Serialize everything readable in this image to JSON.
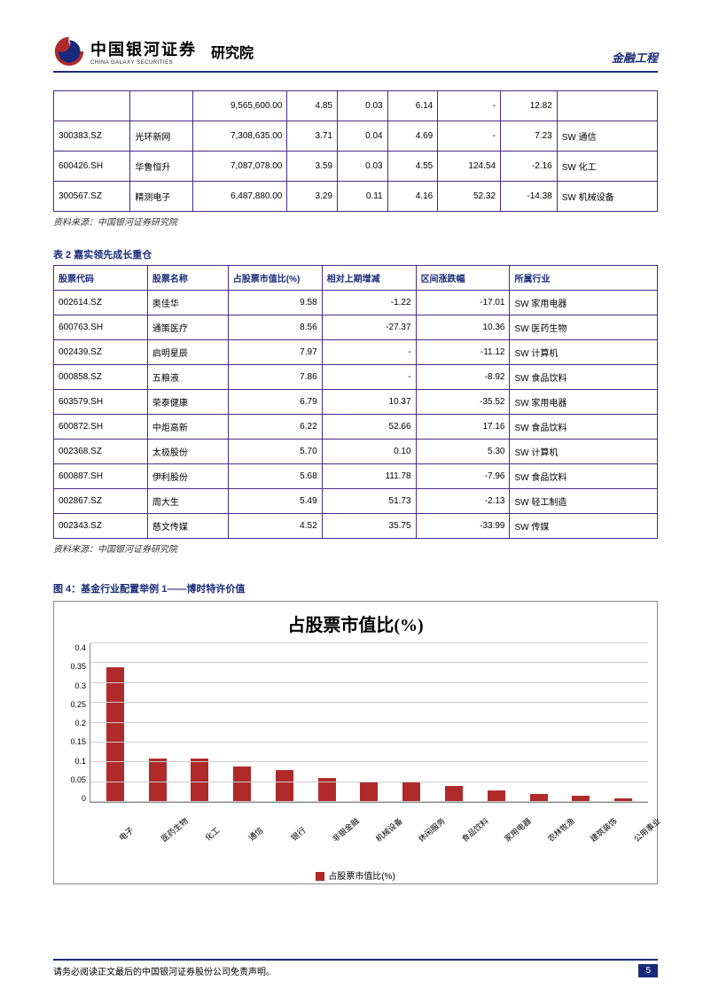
{
  "header": {
    "company_cn": "中国银河证券",
    "company_en": "CHINA GALAXY SECURITIES",
    "suffix": "研究院",
    "right_label": "金融工程",
    "logo": {
      "outer_color": "#b02a2a",
      "inner_color": "#1a2a7a"
    }
  },
  "table1": {
    "rows": [
      [
        "",
        "",
        "9,565,600.00",
        "4.85",
        "0.03",
        "6.14",
        "-",
        "12.82",
        ""
      ],
      [
        "300383.SZ",
        "光环新网",
        "7,308,635.00",
        "3.71",
        "0.04",
        "4.69",
        "-",
        "7.23",
        "SW 通信"
      ],
      [
        "600426.SH",
        "华鲁恒升",
        "7,087,078.00",
        "3.59",
        "0.03",
        "4.55",
        "124.54",
        "-2.16",
        "SW 化工"
      ],
      [
        "300567.SZ",
        "精测电子",
        "6,487,880.00",
        "3.29",
        "0.11",
        "4.16",
        "52.32",
        "-14.38",
        "SW 机械设备"
      ]
    ],
    "col_align": [
      "left",
      "left",
      "right",
      "right",
      "right",
      "right",
      "right",
      "right",
      "left"
    ]
  },
  "source_note": "资料来源：中国银河证券研究院",
  "table2": {
    "title": "表  2 嘉实领先成长重仓",
    "headers": [
      "股票代码",
      "股票名称",
      "占股票市值比(%)",
      "相对上期增减",
      "区间涨跌幅",
      "所属行业"
    ],
    "rows": [
      [
        "002614.SZ",
        "奥佳华",
        "9.58",
        "-1.22",
        "-17.01",
        "SW 家用电器"
      ],
      [
        "600763.SH",
        "通策医疗",
        "8.56",
        "-27.37",
        "10.36",
        "SW 医药生物"
      ],
      [
        "002439.SZ",
        "启明星辰",
        "7.97",
        "-",
        "-11.12",
        "SW 计算机"
      ],
      [
        "000858.SZ",
        "五粮液",
        "7.86",
        "-",
        "-8.92",
        "SW 食品饮料"
      ],
      [
        "603579.SH",
        "荣泰健康",
        "6.79",
        "10.37",
        "-35.52",
        "SW 家用电器"
      ],
      [
        "600872.SH",
        "中炬高新",
        "6.22",
        "52.66",
        "17.16",
        "SW 食品饮料"
      ],
      [
        "002368.SZ",
        "太极股份",
        "5.70",
        "0.10",
        "5.30",
        "SW 计算机"
      ],
      [
        "600887.SH",
        "伊利股份",
        "5.68",
        "111.78",
        "-7.96",
        "SW 食品饮料"
      ],
      [
        "002867.SZ",
        "周大生",
        "5.49",
        "51.73",
        "-2.13",
        "SW 轻工制造"
      ],
      [
        "002343.SZ",
        "慈文传媒",
        "4.52",
        "35.75",
        "-33.99",
        "SW 传媒"
      ]
    ],
    "col_align": [
      "left",
      "left",
      "right",
      "right",
      "right",
      "left"
    ]
  },
  "chart": {
    "figure_title": "图 4：基金行业配置举例 1——博时特许价值",
    "main_title": "占股票市值比(%)",
    "legend_label": "占股票市值比(%)",
    "type": "bar",
    "categories": [
      "电子",
      "医药生物",
      "化工",
      "通信",
      "银行",
      "非银金融",
      "机械设备",
      "休闲服务",
      "食品饮料",
      "家用电器",
      "农林牧渔",
      "建筑装饰",
      "公用事业"
    ],
    "values": [
      0.34,
      0.11,
      0.11,
      0.09,
      0.08,
      0.06,
      0.05,
      0.05,
      0.04,
      0.03,
      0.02,
      0.015,
      0.01
    ],
    "y_ticks": [
      "0.4",
      "0.35",
      "0.3",
      "0.25",
      "0.2",
      "0.15",
      "0.1",
      "0.05",
      "0"
    ],
    "y_max": 0.4,
    "bar_color": "#b02a2a",
    "grid_color": "#cccccc",
    "axis_color": "#888888",
    "background_color": "#ffffff",
    "label_fontsize": 9,
    "title_fontsize": 20
  },
  "footer": {
    "disclaimer": "请务必阅读正文最后的中国银河证券股份公司免责声明。",
    "page": "5"
  }
}
